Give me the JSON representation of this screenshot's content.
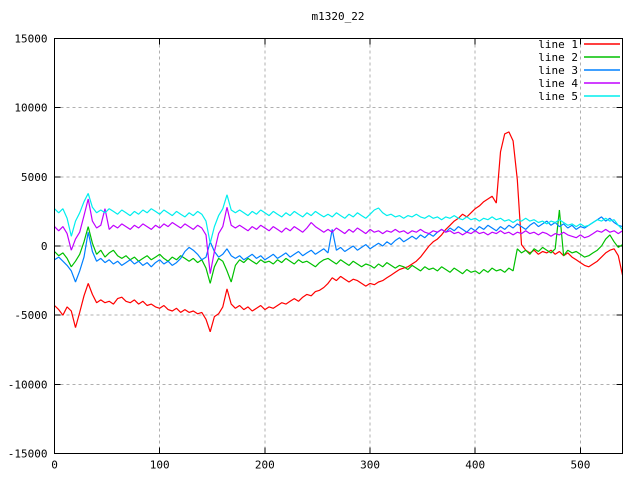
{
  "title": "m1320_22",
  "colors": {
    "background": "#ffffff",
    "border": "#000000",
    "grid": "#b0b0b0",
    "text": "#000000"
  },
  "chart_data": {
    "type": "line",
    "title": "m1320_22",
    "xlabel": "",
    "ylabel": "",
    "xlim": [
      0,
      540
    ],
    "ylim": [
      -15000,
      15000
    ],
    "x_ticks": [
      0,
      100,
      200,
      300,
      400,
      500
    ],
    "y_ticks": [
      -15000,
      -10000,
      -5000,
      0,
      5000,
      10000,
      15000
    ],
    "grid": true,
    "grid_style": "dashed",
    "legend_position": "top-right",
    "x_start": 0,
    "x_step": 4,
    "series": [
      {
        "name": "line 1",
        "color": "#ff0000",
        "values": [
          -4300,
          -4600,
          -5000,
          -4400,
          -4700,
          -5900,
          -4800,
          -3600,
          -2700,
          -3500,
          -4100,
          -3900,
          -4100,
          -4000,
          -4200,
          -3800,
          -3700,
          -4000,
          -4100,
          -3900,
          -4200,
          -4000,
          -4300,
          -4200,
          -4400,
          -4500,
          -4300,
          -4600,
          -4700,
          -4500,
          -4800,
          -4600,
          -4800,
          -4700,
          -4900,
          -4800,
          -5300,
          -6200,
          -5100,
          -4900,
          -4400,
          -3100,
          -4200,
          -4500,
          -4300,
          -4600,
          -4400,
          -4700,
          -4500,
          -4300,
          -4600,
          -4400,
          -4500,
          -4300,
          -4100,
          -4200,
          -4000,
          -3800,
          -4000,
          -3700,
          -3500,
          -3600,
          -3300,
          -3200,
          -3000,
          -2700,
          -2300,
          -2500,
          -2200,
          -2400,
          -2600,
          -2400,
          -2500,
          -2700,
          -2900,
          -2700,
          -2800,
          -2600,
          -2500,
          -2300,
          -2100,
          -1900,
          -1700,
          -1600,
          -1500,
          -1300,
          -1100,
          -800,
          -400,
          0,
          300,
          500,
          800,
          1200,
          1500,
          1800,
          2000,
          2300,
          2100,
          2400,
          2700,
          2900,
          3200,
          3400,
          3600,
          3100,
          6800,
          8100,
          8250,
          7600,
          4800,
          100,
          -300,
          -500,
          -300,
          -600,
          -400,
          -500,
          -300,
          -600,
          -400,
          -700,
          -500,
          -800,
          -1000,
          -1200,
          -1400,
          -1500,
          -1300,
          -1100,
          -800,
          -500,
          -300,
          -200,
          -700,
          -2100
        ]
      },
      {
        "name": "line 2",
        "color": "#00c000",
        "values": [
          -400,
          -700,
          -500,
          -900,
          -1500,
          -1100,
          -600,
          300,
          1400,
          200,
          -600,
          -300,
          -800,
          -500,
          -300,
          -700,
          -900,
          -700,
          -1000,
          -800,
          -1100,
          -900,
          -700,
          -1000,
          -800,
          -600,
          -900,
          -1100,
          -800,
          -1000,
          -700,
          -900,
          -1100,
          -900,
          -1200,
          -1000,
          -1600,
          -2700,
          -1500,
          -900,
          -1100,
          -1800,
          -2600,
          -1400,
          -1000,
          -1200,
          -900,
          -1100,
          -1300,
          -1000,
          -1200,
          -1100,
          -1300,
          -1000,
          -1200,
          -900,
          -1100,
          -1300,
          -1000,
          -1200,
          -1100,
          -1300,
          -1500,
          -1200,
          -1000,
          -900,
          -1100,
          -1300,
          -1000,
          -1200,
          -1400,
          -1100,
          -1300,
          -1500,
          -1300,
          -1400,
          -1600,
          -1300,
          -1500,
          -1200,
          -1400,
          -1600,
          -1400,
          -1500,
          -1700,
          -1400,
          -1600,
          -1800,
          -1500,
          -1700,
          -1600,
          -1800,
          -1500,
          -1700,
          -1900,
          -1600,
          -1800,
          -2000,
          -1700,
          -1900,
          -1800,
          -2000,
          -1700,
          -1900,
          -1600,
          -1800,
          -1700,
          -1900,
          -1600,
          -1800,
          -200,
          -500,
          -300,
          -600,
          -200,
          -400,
          -100,
          -300,
          -500,
          -200,
          2600,
          -700,
          -300,
          -500,
          -400,
          -600,
          -800,
          -700,
          -500,
          -300,
          0,
          500,
          800,
          300,
          -100,
          100
        ]
      },
      {
        "name": "line 3",
        "color": "#0080ff",
        "values": [
          -1000,
          -800,
          -1100,
          -1400,
          -1800,
          -2600,
          -1800,
          -800,
          1000,
          -400,
          -1100,
          -900,
          -1200,
          -1000,
          -1300,
          -1100,
          -1400,
          -1200,
          -1000,
          -1300,
          -1100,
          -1400,
          -1200,
          -1500,
          -1200,
          -1000,
          -1300,
          -1100,
          -1400,
          -1200,
          -900,
          -400,
          -100,
          -300,
          -600,
          -1000,
          -800,
          300,
          -400,
          -800,
          -600,
          -200,
          -700,
          -900,
          -700,
          -1000,
          -800,
          -600,
          -900,
          -700,
          -1000,
          -800,
          -600,
          -900,
          -700,
          -500,
          -800,
          -600,
          -400,
          -700,
          -500,
          -300,
          -600,
          -400,
          -200,
          -500,
          1200,
          -300,
          -100,
          -400,
          -200,
          0,
          -300,
          -100,
          100,
          -200,
          0,
          200,
          0,
          300,
          100,
          400,
          600,
          300,
          500,
          700,
          500,
          800,
          600,
          900,
          700,
          1000,
          1200,
          1000,
          1300,
          1100,
          1400,
          1200,
          1000,
          1300,
          1100,
          1400,
          1200,
          1500,
          1300,
          1100,
          1400,
          1200,
          1500,
          1300,
          1600,
          1400,
          1200,
          1500,
          1700,
          1400,
          1600,
          1800,
          1500,
          1700,
          1400,
          1600,
          1300,
          1500,
          1200,
          1400,
          1300,
          1500,
          1700,
          1900,
          2100,
          1800,
          2000,
          1700,
          1500,
          1400
        ]
      },
      {
        "name": "line 4",
        "color": "#c000ff",
        "values": [
          1400,
          1100,
          1400,
          900,
          -300,
          500,
          1000,
          2200,
          3400,
          1800,
          1300,
          1500,
          2700,
          1200,
          1500,
          1300,
          1600,
          1400,
          1200,
          1500,
          1300,
          1600,
          1400,
          1200,
          1500,
          1300,
          1600,
          1400,
          1700,
          1500,
          1300,
          1600,
          1400,
          1200,
          1500,
          1300,
          800,
          -2000,
          -400,
          900,
          1400,
          2800,
          1500,
          1300,
          1500,
          1300,
          1100,
          1400,
          1200,
          1500,
          1300,
          1100,
          1400,
          1200,
          1000,
          1300,
          1100,
          1400,
          1200,
          1000,
          1300,
          1700,
          1400,
          1200,
          1000,
          1200,
          1000,
          1300,
          1100,
          900,
          1200,
          1000,
          1300,
          1100,
          900,
          1200,
          1000,
          1100,
          900,
          1100,
          1000,
          1200,
          1000,
          1100,
          900,
          1100,
          1000,
          1200,
          1000,
          900,
          1100,
          1000,
          1200,
          1000,
          1100,
          900,
          1000,
          800,
          1000,
          900,
          1100,
          900,
          1000,
          800,
          1000,
          900,
          1100,
          900,
          1000,
          800,
          1000,
          900,
          1100,
          900,
          1000,
          800,
          1000,
          900,
          700,
          900,
          800,
          1000,
          800,
          700,
          600,
          800,
          600,
          700,
          900,
          1100,
          1000,
          1200,
          1000,
          1100,
          900,
          1100
        ]
      },
      {
        "name": "line 5",
        "color": "#00eeee",
        "values": [
          2700,
          2400,
          2700,
          2000,
          700,
          1800,
          2400,
          3200,
          3800,
          2800,
          2400,
          2600,
          2400,
          2700,
          2500,
          2300,
          2600,
          2400,
          2200,
          2500,
          2300,
          2600,
          2400,
          2700,
          2500,
          2300,
          2600,
          2400,
          2200,
          2500,
          2300,
          2100,
          2400,
          2200,
          2500,
          2300,
          1800,
          200,
          1400,
          2200,
          2700,
          3700,
          2600,
          2400,
          2600,
          2400,
          2200,
          2500,
          2300,
          2600,
          2400,
          2200,
          2500,
          2300,
          2100,
          2400,
          2200,
          2500,
          2300,
          2100,
          2400,
          2200,
          2500,
          2300,
          2100,
          2300,
          2100,
          2400,
          2200,
          2000,
          2300,
          2100,
          2400,
          2200,
          2000,
          2300,
          2600,
          2750,
          2400,
          2200,
          2300,
          2100,
          2200,
          2000,
          2200,
          2100,
          2300,
          2100,
          2000,
          2200,
          2000,
          2100,
          1900,
          2100,
          2000,
          2200,
          2000,
          1900,
          2100,
          1900,
          2000,
          1800,
          2000,
          1900,
          2100,
          1900,
          2000,
          1800,
          1900,
          1700,
          1900,
          1800,
          2000,
          1800,
          1900,
          1700,
          1800,
          1600,
          1800,
          1700,
          1900,
          1700,
          1500,
          1600,
          1400,
          1600,
          1400,
          1500,
          1700,
          1900,
          1800,
          2000,
          1800,
          1900,
          1500,
          1200
        ]
      }
    ]
  }
}
